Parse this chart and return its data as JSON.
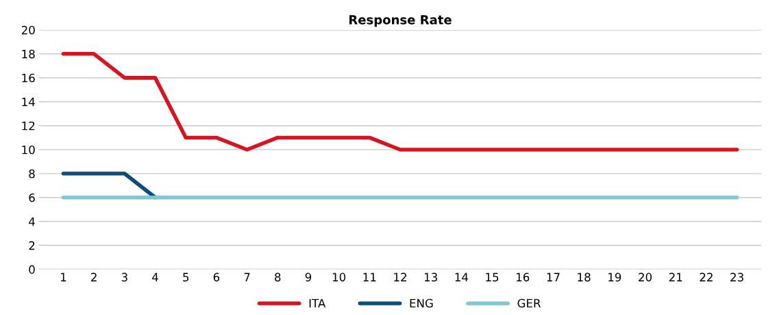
{
  "chart_data": {
    "type": "line",
    "title": "Response Rate",
    "categories": [
      "1",
      "2",
      "3",
      "4",
      "5",
      "6",
      "7",
      "8",
      "9",
      "10",
      "11",
      "12",
      "13",
      "14",
      "15",
      "16",
      "17",
      "18",
      "19",
      "20",
      "21",
      "22",
      "23"
    ],
    "series": [
      {
        "name": "ITA",
        "color": "#d7141f",
        "values": [
          18,
          18,
          16,
          16,
          11,
          11,
          10,
          11,
          11,
          11,
          11,
          10,
          10,
          10,
          10,
          10,
          10,
          10,
          10,
          10,
          10,
          10,
          10
        ]
      },
      {
        "name": "ENG",
        "color": "#0f4c7a",
        "values": [
          8,
          8,
          8,
          6,
          null,
          null,
          null,
          null,
          null,
          null,
          null,
          null,
          null,
          null,
          null,
          null,
          null,
          null,
          null,
          null,
          null,
          null,
          null
        ]
      },
      {
        "name": "GER",
        "color": "#7ec8d3",
        "values": [
          6,
          6,
          6,
          6,
          6,
          6,
          6,
          6,
          6,
          6,
          6,
          6,
          6,
          6,
          6,
          6,
          6,
          6,
          6,
          6,
          6,
          6,
          6
        ]
      }
    ],
    "ylim": [
      0,
      20
    ],
    "yticks": [
      0,
      2,
      4,
      6,
      8,
      10,
      12,
      14,
      16,
      18,
      20
    ],
    "grid": "y",
    "legend": "bottom",
    "marker": "none",
    "line_style": "solid"
  }
}
